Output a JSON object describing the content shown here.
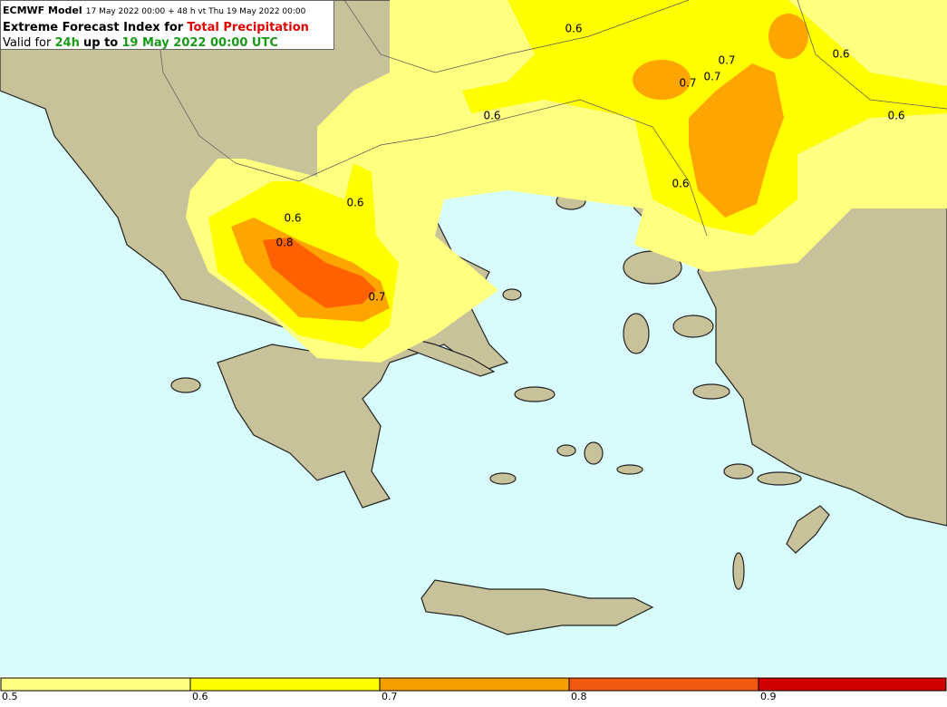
{
  "header": {
    "model": "ECMWF Model",
    "run": "17 May 2022 00:00 + 48 h vt Thu 19 May 2022 00:00",
    "index_prefix": "Extreme Forecast Index for",
    "parameter": "Total Precipitation",
    "valid_prefix": "Valid for",
    "period": "24h",
    "up_to": "up to",
    "valid_time": "19 May 2022 00:00 UTC"
  },
  "contour_labels": [
    "0.6",
    "0.6",
    "0.7",
    "0.7",
    "0.7",
    "0.6",
    "0.6",
    "0.6",
    "0.6",
    "0.6",
    "0.8",
    "0.7"
  ],
  "colorbar": {
    "labels": [
      "0.5",
      "0.6",
      "0.7",
      "0.8",
      "0.9"
    ]
  }
}
